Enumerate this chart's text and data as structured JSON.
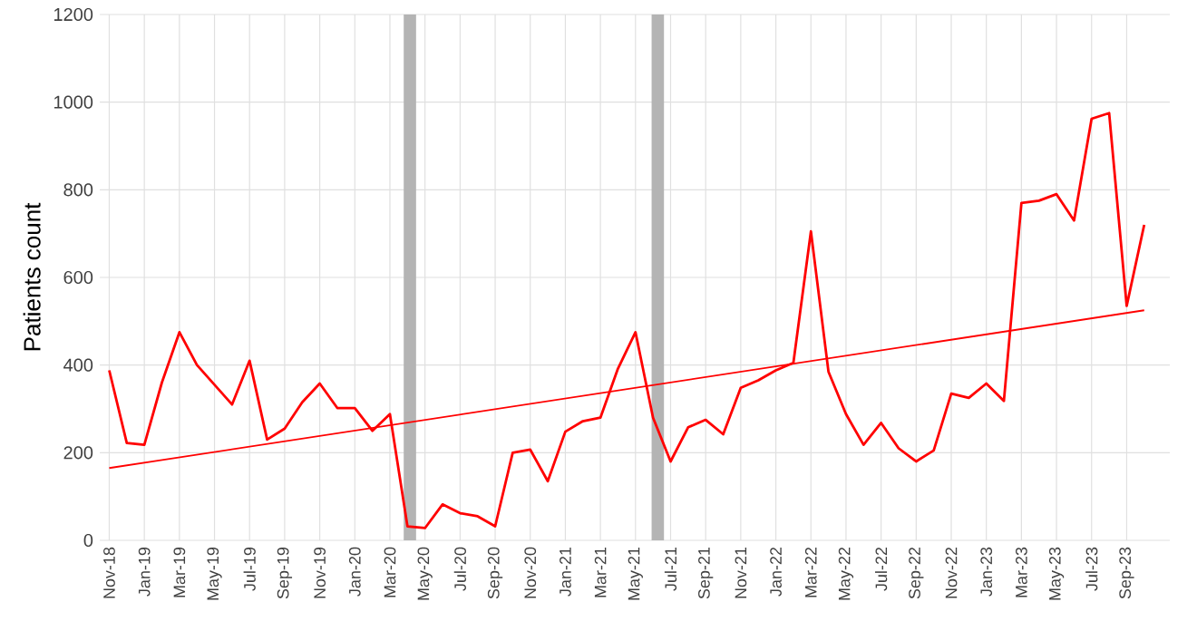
{
  "chart_data": {
    "type": "line",
    "ylabel": "Patients count",
    "x": [
      "2018-11",
      "2018-12",
      "2019-01",
      "2019-02",
      "2019-03",
      "2019-04",
      "2019-05",
      "2019-06",
      "2019-07",
      "2019-08",
      "2019-09",
      "2019-10",
      "2019-11",
      "2019-12",
      "2020-01",
      "2020-02",
      "2020-03",
      "2020-04",
      "2020-05",
      "2020-06",
      "2020-07",
      "2020-08",
      "2020-09",
      "2020-10",
      "2020-11",
      "2020-12",
      "2021-01",
      "2021-02",
      "2021-03",
      "2021-04",
      "2021-05",
      "2021-06",
      "2021-07",
      "2021-08",
      "2021-09",
      "2021-10",
      "2021-11",
      "2021-12",
      "2022-01",
      "2022-02",
      "2022-03",
      "2022-04",
      "2022-05",
      "2022-06",
      "2022-07",
      "2022-08",
      "2022-09",
      "2022-10",
      "2022-11",
      "2022-12",
      "2023-01",
      "2023-02",
      "2023-03",
      "2023-04",
      "2023-05",
      "2023-06",
      "2023-07",
      "2023-08",
      "2023-09",
      "2023-10"
    ],
    "series": [
      {
        "color": "#ff0000",
        "values": [
          388,
          222,
          218,
          360,
          475,
          400,
          355,
          310,
          410,
          230,
          255,
          315,
          358,
          302,
          302,
          250,
          288,
          32,
          28,
          82,
          62,
          55,
          32,
          200,
          207,
          135,
          248,
          272,
          280,
          392,
          475,
          280,
          180,
          258,
          275,
          242,
          348,
          365,
          388,
          405,
          705,
          385,
          288,
          218,
          268,
          210,
          180,
          205,
          335,
          325,
          358,
          318,
          770,
          775,
          790,
          730,
          962,
          975,
          535,
          720
        ]
      },
      {
        "type": "line",
        "color": "#ff0000",
        "x": [
          "2018-11",
          "2023-10"
        ],
        "values": [
          165,
          525
        ]
      }
    ],
    "xlim": [
      "2018-10-15",
      "2023-11-15"
    ],
    "xticks": [
      {
        "value": "2018-11",
        "label": "Nov-18"
      },
      {
        "value": "2019-01",
        "label": "Jan-19"
      },
      {
        "value": "2019-03",
        "label": "Mar-19"
      },
      {
        "value": "2019-05",
        "label": "May-19"
      },
      {
        "value": "2019-07",
        "label": "Jul-19"
      },
      {
        "value": "2019-09",
        "label": "Sep-19"
      },
      {
        "value": "2019-11",
        "label": "Nov-19"
      },
      {
        "value": "2020-01",
        "label": "Jan-20"
      },
      {
        "value": "2020-03",
        "label": "Mar-20"
      },
      {
        "value": "2020-05",
        "label": "May-20"
      },
      {
        "value": "2020-07",
        "label": "Jul-20"
      },
      {
        "value": "2020-09",
        "label": "Sep-20"
      },
      {
        "value": "2020-11",
        "label": "Nov-20"
      },
      {
        "value": "2021-01",
        "label": "Jan-21"
      },
      {
        "value": "2021-03",
        "label": "Mar-21"
      },
      {
        "value": "2021-05",
        "label": "May-21"
      },
      {
        "value": "2021-07",
        "label": "Jul-21"
      },
      {
        "value": "2021-09",
        "label": "Sep-21"
      },
      {
        "value": "2021-11",
        "label": "Nov-21"
      },
      {
        "value": "2022-01",
        "label": "Jan-22"
      },
      {
        "value": "2022-03",
        "label": "Mar-22"
      },
      {
        "value": "2022-05",
        "label": "May-22"
      },
      {
        "value": "2022-07",
        "label": "Jul-22"
      },
      {
        "value": "2022-09",
        "label": "Sep-22"
      },
      {
        "value": "2022-11",
        "label": "Nov-22"
      },
      {
        "value": "2023-01",
        "label": "Jan-23"
      },
      {
        "value": "2023-03",
        "label": "Mar-23"
      },
      {
        "value": "2023-05",
        "label": "May-23"
      },
      {
        "value": "2023-07",
        "label": "Jul-23"
      },
      {
        "value": "2023-09",
        "label": "Sep-23"
      }
    ],
    "ylim": [
      0,
      1200
    ],
    "yticks": [
      0,
      200,
      400,
      600,
      800,
      1000,
      1200
    ],
    "bands": [
      {
        "axis": "x",
        "from": "2020-03-25",
        "to": "2020-04-16",
        "color": "#b4b4b4"
      },
      {
        "axis": "x",
        "from": "2021-05-29",
        "to": "2021-06-20",
        "color": "#b4b4b4"
      }
    ],
    "grid": true,
    "marker": "none",
    "line_style": "solid"
  }
}
